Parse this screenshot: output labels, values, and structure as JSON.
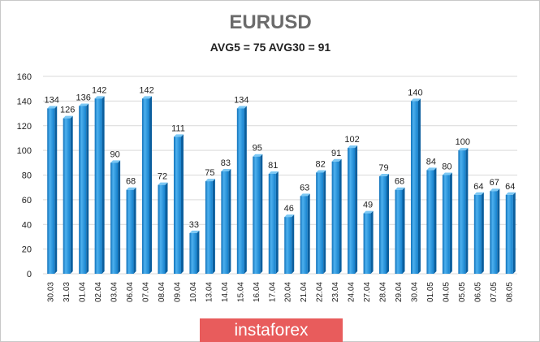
{
  "chart_data": {
    "type": "bar",
    "title": "EURUSD",
    "subtitle": "AVG5 = 75 AVG30 = 91",
    "categories": [
      "30.03",
      "31.03",
      "01.04",
      "02.04",
      "03.04",
      "06.04",
      "07.04",
      "08.04",
      "09.04",
      "10.04",
      "13.04",
      "14.04",
      "15.04",
      "16.04",
      "17.04",
      "20.04",
      "21.04",
      "22.04",
      "23.04",
      "24.04",
      "27.04",
      "28.04",
      "29.04",
      "30.04",
      "01.05",
      "04.05",
      "05.05",
      "06.05",
      "07.05",
      "08.05"
    ],
    "values": [
      134,
      126,
      136,
      142,
      90,
      68,
      142,
      72,
      111,
      33,
      75,
      83,
      134,
      95,
      81,
      46,
      63,
      82,
      91,
      102,
      49,
      79,
      68,
      140,
      84,
      80,
      100,
      64,
      67,
      64
    ],
    "yticks": [
      "0",
      "20",
      "40",
      "60",
      "80",
      "100",
      "120",
      "140",
      "160"
    ],
    "ylim": [
      0,
      160
    ],
    "grid": true,
    "legend": "none",
    "bar_color": "#1a8ad4",
    "bar_light": "#5bb7ef"
  },
  "watermark": {
    "text": "instaforex",
    "color": "#e85c5c"
  }
}
